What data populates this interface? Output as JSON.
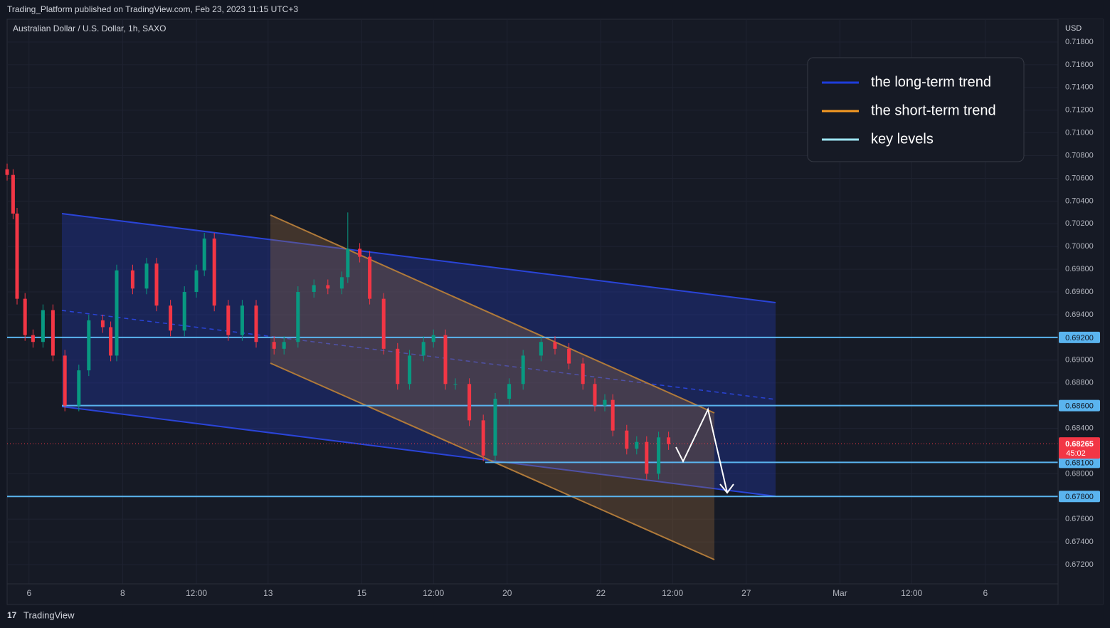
{
  "header": {
    "published": "Trading_Platform published on TradingView.com, Feb 23, 2023 11:15 UTC+3",
    "symbol": "Australian Dollar / U.S. Dollar, 1h, SAXO",
    "currency": "USD"
  },
  "footer": {
    "brand": "TradingView"
  },
  "chart_data": {
    "type": "candlestick",
    "x": [
      0,
      3,
      5,
      9,
      13,
      18,
      23,
      29,
      36,
      41,
      48,
      52,
      55,
      63,
      70,
      75,
      82,
      89,
      95,
      99,
      104,
      111,
      118,
      125,
      134,
      139,
      146,
      154,
      161,
      168,
      171,
      177,
      182,
      189,
      196,
      202,
      209,
      214,
      220,
      225,
      232,
      239,
      245,
      252,
      259,
      268,
      275,
      282,
      289,
      295,
      300,
      304,
      311,
      316,
      321,
      327,
      332
    ],
    "open": [
      0.7068,
      0.7063,
      0.7029,
      0.6954,
      0.6922,
      0.6916,
      0.6944,
      0.6904,
      0.686,
      0.6891,
      0.6935,
      0.6929,
      0.6904,
      0.6979,
      0.6963,
      0.6985,
      0.6948,
      0.6926,
      0.696,
      0.6979,
      0.7007,
      0.6948,
      0.6922,
      0.6948,
      0.6916,
      0.691,
      0.6916,
      0.696,
      0.6966,
      0.6963,
      0.6973,
      0.6998,
      0.6991,
      0.6954,
      0.691,
      0.6879,
      0.6904,
      0.6916,
      0.6922,
      0.6879,
      0.6879,
      0.6847,
      0.6816,
      0.6866,
      0.6879,
      0.6904,
      0.6916,
      0.691,
      0.6897,
      0.6879,
      0.686,
      0.6865,
      0.6838,
      0.6822,
      0.6828,
      0.68,
      0.6832
    ],
    "high": [
      0.7073,
      0.7068,
      0.7034,
      0.6959,
      0.6927,
      0.6949,
      0.6949,
      0.6909,
      0.6896,
      0.694,
      0.694,
      0.6934,
      0.6984,
      0.6984,
      0.699,
      0.699,
      0.6953,
      0.6965,
      0.6984,
      0.7012,
      0.7012,
      0.6953,
      0.6953,
      0.6953,
      0.6921,
      0.6921,
      0.6965,
      0.6971,
      0.6971,
      0.6978,
      0.703,
      0.7003,
      0.6996,
      0.6959,
      0.6915,
      0.6909,
      0.6921,
      0.6927,
      0.6927,
      0.6884,
      0.6884,
      0.6852,
      0.6871,
      0.6884,
      0.6909,
      0.6921,
      0.6921,
      0.6915,
      0.6902,
      0.6884,
      0.687,
      0.687,
      0.6843,
      0.6833,
      0.6833,
      0.6837,
      0.6837
    ],
    "low": [
      0.7058,
      0.7024,
      0.6949,
      0.6917,
      0.6911,
      0.6911,
      0.6899,
      0.6855,
      0.6855,
      0.6886,
      0.6924,
      0.6899,
      0.6899,
      0.6958,
      0.6958,
      0.6943,
      0.6921,
      0.6921,
      0.6955,
      0.6974,
      0.6943,
      0.6917,
      0.6917,
      0.6911,
      0.6905,
      0.6905,
      0.6911,
      0.6955,
      0.6958,
      0.6958,
      0.6968,
      0.6986,
      0.6949,
      0.6905,
      0.6874,
      0.6874,
      0.6899,
      0.6911,
      0.6874,
      0.6874,
      0.6842,
      0.6811,
      0.6811,
      0.6861,
      0.6874,
      0.6899,
      0.6905,
      0.6892,
      0.6874,
      0.6855,
      0.6855,
      0.6833,
      0.6817,
      0.6817,
      0.6795,
      0.6795,
      0.6821
    ],
    "close": [
      0.7063,
      0.7029,
      0.6954,
      0.6922,
      0.6916,
      0.6944,
      0.6904,
      0.686,
      0.6891,
      0.6935,
      0.6929,
      0.6904,
      0.6979,
      0.6963,
      0.6985,
      0.6948,
      0.6926,
      0.696,
      0.6979,
      0.7007,
      0.6948,
      0.6922,
      0.6948,
      0.6916,
      0.691,
      0.6916,
      0.696,
      0.6966,
      0.6963,
      0.6973,
      0.6998,
      0.6991,
      0.6954,
      0.691,
      0.6879,
      0.6904,
      0.6916,
      0.6922,
      0.6879,
      0.6879,
      0.6847,
      0.6816,
      0.6866,
      0.6879,
      0.6904,
      0.6916,
      0.691,
      0.6897,
      0.6879,
      0.686,
      0.6865,
      0.6838,
      0.6822,
      0.6828,
      0.68,
      0.6832,
      0.6826
    ],
    "up_color": "#089981",
    "down_color": "#f23645",
    "xlim": [
      0,
      527.5
    ],
    "xticks": [
      {
        "value": 11,
        "label": "6"
      },
      {
        "value": 58,
        "label": "8"
      },
      {
        "value": 95,
        "label": "12:00"
      },
      {
        "value": 131,
        "label": "13"
      },
      {
        "value": 178,
        "label": "15"
      },
      {
        "value": 214,
        "label": "12:00"
      },
      {
        "value": 251,
        "label": "20"
      },
      {
        "value": 298,
        "label": "22"
      },
      {
        "value": 334,
        "label": "12:00"
      },
      {
        "value": 371,
        "label": "27"
      },
      {
        "value": 418,
        "label": "Mar"
      },
      {
        "value": 454,
        "label": "12:00"
      },
      {
        "value": 491,
        "label": "6"
      }
    ],
    "ylim": [
      0.672,
      0.718
    ],
    "yticks": [
      {
        "value": 0.718,
        "label": "0.71800"
      },
      {
        "value": 0.716,
        "label": "0.71600"
      },
      {
        "value": 0.714,
        "label": "0.71400"
      },
      {
        "value": 0.712,
        "label": "0.71200"
      },
      {
        "value": 0.71,
        "label": "0.71000"
      },
      {
        "value": 0.708,
        "label": "0.70800"
      },
      {
        "value": 0.706,
        "label": "0.70600"
      },
      {
        "value": 0.704,
        "label": "0.70400"
      },
      {
        "value": 0.702,
        "label": "0.70200"
      },
      {
        "value": 0.7,
        "label": "0.70000"
      },
      {
        "value": 0.698,
        "label": "0.69800"
      },
      {
        "value": 0.696,
        "label": "0.69600"
      },
      {
        "value": 0.694,
        "label": "0.69400"
      },
      {
        "value": 0.69,
        "label": "0.69000"
      },
      {
        "value": 0.688,
        "label": "0.68800"
      },
      {
        "value": 0.684,
        "label": "0.68400"
      },
      {
        "value": 0.68,
        "label": "0.68000"
      },
      {
        "value": 0.676,
        "label": "0.67600"
      },
      {
        "value": 0.674,
        "label": "0.67400"
      },
      {
        "value": 0.672,
        "label": "0.67200"
      }
    ],
    "grid": true,
    "key_levels": [
      {
        "value": 0.692,
        "label": "0.69200"
      },
      {
        "value": 0.686,
        "label": "0.68600"
      },
      {
        "value": 0.681,
        "label": "0.68100"
      },
      {
        "value": 0.678,
        "label": "0.67800"
      }
    ],
    "key_level_color": "#5ab4ef",
    "last_price": {
      "value": 0.68265,
      "label": "0.68265",
      "countdown": "45:02"
    },
    "legend": [
      {
        "name": "the long-term trend",
        "color": "#1e3ddb"
      },
      {
        "name": "the short-term trend",
        "color": "#f59a23"
      },
      {
        "name": "key levels",
        "color": "#9ee6f5"
      }
    ],
    "legend_position": "upper right"
  }
}
